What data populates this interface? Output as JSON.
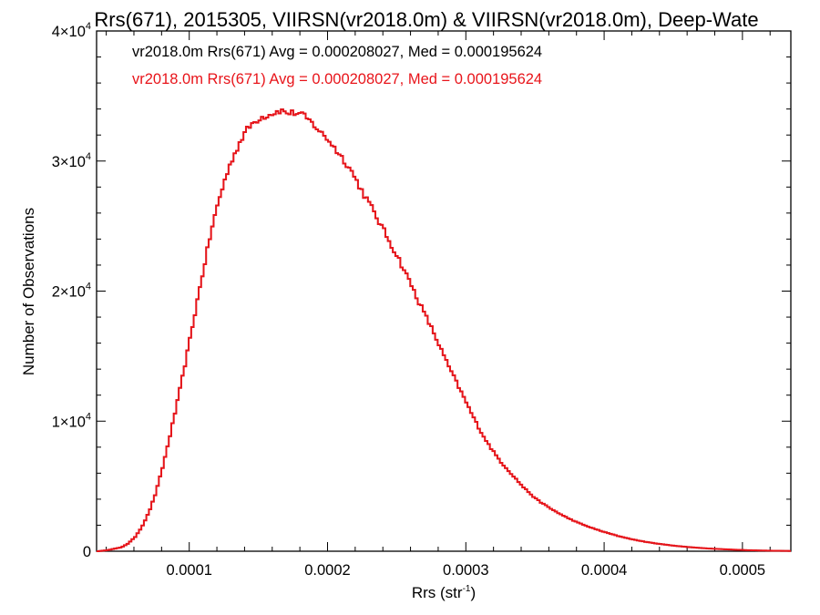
{
  "chart_data": {
    "type": "line",
    "title": "Rrs(671), 2015305, VIIRSN(vr2018.0m) & VIIRSN(vr2018.0m), Deep-Wate",
    "xlabel": "Rrs (str",
    "xlabel_sup": "-1",
    "xlabel_suffix": ")",
    "ylabel": "Number of Observations",
    "xlim": [
      3.3e-05,
      0.000535
    ],
    "ylim": [
      0,
      40000
    ],
    "x_ticks": [
      {
        "value": 0.0001,
        "label": "0.0001"
      },
      {
        "value": 0.0002,
        "label": "0.0002"
      },
      {
        "value": 0.0003,
        "label": "0.0003"
      },
      {
        "value": 0.0004,
        "label": "0.0004"
      },
      {
        "value": 0.0005,
        "label": "0.0005"
      }
    ],
    "y_ticks": [
      {
        "value": 0,
        "mantissa": "0",
        "exp": ""
      },
      {
        "value": 10000,
        "mantissa": "1×10",
        "exp": "4"
      },
      {
        "value": 20000,
        "mantissa": "2×10",
        "exp": "4"
      },
      {
        "value": 30000,
        "mantissa": "3×10",
        "exp": "4"
      },
      {
        "value": 40000,
        "mantissa": "4×10",
        "exp": "4"
      }
    ],
    "grid": false,
    "legend_position": "top-left",
    "series": [
      {
        "name": "vr2018.0m Rrs(671) Avg = 0.000208027, Med = 0.000195624",
        "color": "#000000",
        "points": [
          [
            3.3e-05,
            0
          ],
          [
            4e-05,
            80
          ],
          [
            5e-05,
            300
          ],
          [
            5.5e-05,
            600
          ],
          [
            6e-05,
            1100
          ],
          [
            6.5e-05,
            1900
          ],
          [
            7e-05,
            3000
          ],
          [
            7.5e-05,
            4500
          ],
          [
            8e-05,
            6500
          ],
          [
            8.5e-05,
            8800
          ],
          [
            9e-05,
            11200
          ],
          [
            9.5e-05,
            13800
          ],
          [
            0.0001,
            16500
          ],
          [
            0.000105,
            19300
          ],
          [
            0.00011,
            22000
          ],
          [
            0.000115,
            24600
          ],
          [
            0.00012,
            26800
          ],
          [
            0.000125,
            28600
          ],
          [
            0.00013,
            30100
          ],
          [
            0.000135,
            31300
          ],
          [
            0.00014,
            32300
          ],
          [
            0.000145,
            32900
          ],
          [
            0.00015,
            33300
          ],
          [
            0.000155,
            33500
          ],
          [
            0.00016,
            33700
          ],
          [
            0.000165,
            33900
          ],
          [
            0.00017,
            33700
          ],
          [
            0.000175,
            33700
          ],
          [
            0.00018,
            33600
          ],
          [
            0.000185,
            33200
          ],
          [
            0.00019,
            32700
          ],
          [
            0.000195,
            32100
          ],
          [
            0.0002,
            31600
          ],
          [
            0.000205,
            30900
          ],
          [
            0.00021,
            30200
          ],
          [
            0.000215,
            29500
          ],
          [
            0.00022,
            28500
          ],
          [
            0.000225,
            27500
          ],
          [
            0.00023,
            26600
          ],
          [
            0.000235,
            25600
          ],
          [
            0.00024,
            24600
          ],
          [
            0.000245,
            23600
          ],
          [
            0.00025,
            22600
          ],
          [
            0.000255,
            21500
          ],
          [
            0.00026,
            20400
          ],
          [
            0.000265,
            19200
          ],
          [
            0.00027,
            18100
          ],
          [
            0.000275,
            17000
          ],
          [
            0.00028,
            15800
          ],
          [
            0.000285,
            14600
          ],
          [
            0.00029,
            13500
          ],
          [
            0.000295,
            12400
          ],
          [
            0.0003,
            11300
          ],
          [
            0.000305,
            10200
          ],
          [
            0.00031,
            9200
          ],
          [
            0.000315,
            8300
          ],
          [
            0.00032,
            7500
          ],
          [
            0.000325,
            6800
          ],
          [
            0.00033,
            6200
          ],
          [
            0.000335,
            5600
          ],
          [
            0.00034,
            5000
          ],
          [
            0.000345,
            4500
          ],
          [
            0.00035,
            4000
          ],
          [
            0.00036,
            3300
          ],
          [
            0.00037,
            2700
          ],
          [
            0.00038,
            2200
          ],
          [
            0.00039,
            1800
          ],
          [
            0.0004,
            1450
          ],
          [
            0.00041,
            1150
          ],
          [
            0.00042,
            900
          ],
          [
            0.00043,
            700
          ],
          [
            0.00044,
            550
          ],
          [
            0.00045,
            420
          ],
          [
            0.00046,
            320
          ],
          [
            0.00047,
            240
          ],
          [
            0.00048,
            180
          ],
          [
            0.00049,
            130
          ],
          [
            0.0005,
            90
          ],
          [
            0.00051,
            60
          ],
          [
            0.00052,
            40
          ],
          [
            0.00053,
            25
          ],
          [
            0.000535,
            20
          ]
        ]
      },
      {
        "name": "vr2018.0m Rrs(671) Avg = 0.000208027, Med = 0.000195624",
        "color": "#e8141a",
        "points": [
          [
            3.3e-05,
            0
          ],
          [
            4e-05,
            80
          ],
          [
            5e-05,
            300
          ],
          [
            5.5e-05,
            600
          ],
          [
            6e-05,
            1100
          ],
          [
            6.5e-05,
            1900
          ],
          [
            7e-05,
            3000
          ],
          [
            7.5e-05,
            4500
          ],
          [
            8e-05,
            6500
          ],
          [
            8.5e-05,
            8800
          ],
          [
            9e-05,
            11200
          ],
          [
            9.5e-05,
            13800
          ],
          [
            0.0001,
            16500
          ],
          [
            0.000105,
            19300
          ],
          [
            0.00011,
            22000
          ],
          [
            0.000115,
            24600
          ],
          [
            0.00012,
            26800
          ],
          [
            0.000125,
            28600
          ],
          [
            0.00013,
            30100
          ],
          [
            0.000135,
            31300
          ],
          [
            0.00014,
            32300
          ],
          [
            0.000145,
            32900
          ],
          [
            0.00015,
            33300
          ],
          [
            0.000155,
            33500
          ],
          [
            0.00016,
            33700
          ],
          [
            0.000165,
            33900
          ],
          [
            0.00017,
            33700
          ],
          [
            0.000175,
            33700
          ],
          [
            0.00018,
            33600
          ],
          [
            0.000185,
            33200
          ],
          [
            0.00019,
            32700
          ],
          [
            0.000195,
            32100
          ],
          [
            0.0002,
            31600
          ],
          [
            0.000205,
            30900
          ],
          [
            0.00021,
            30200
          ],
          [
            0.000215,
            29500
          ],
          [
            0.00022,
            28500
          ],
          [
            0.000225,
            27500
          ],
          [
            0.00023,
            26600
          ],
          [
            0.000235,
            25600
          ],
          [
            0.00024,
            24600
          ],
          [
            0.000245,
            23600
          ],
          [
            0.00025,
            22600
          ],
          [
            0.000255,
            21500
          ],
          [
            0.00026,
            20400
          ],
          [
            0.000265,
            19200
          ],
          [
            0.00027,
            18100
          ],
          [
            0.000275,
            17000
          ],
          [
            0.00028,
            15800
          ],
          [
            0.000285,
            14600
          ],
          [
            0.00029,
            13500
          ],
          [
            0.000295,
            12400
          ],
          [
            0.0003,
            11300
          ],
          [
            0.000305,
            10200
          ],
          [
            0.00031,
            9200
          ],
          [
            0.000315,
            8300
          ],
          [
            0.00032,
            7500
          ],
          [
            0.000325,
            6800
          ],
          [
            0.00033,
            6200
          ],
          [
            0.000335,
            5600
          ],
          [
            0.00034,
            5000
          ],
          [
            0.000345,
            4500
          ],
          [
            0.00035,
            4000
          ],
          [
            0.00036,
            3300
          ],
          [
            0.00037,
            2700
          ],
          [
            0.00038,
            2200
          ],
          [
            0.00039,
            1800
          ],
          [
            0.0004,
            1450
          ],
          [
            0.00041,
            1150
          ],
          [
            0.00042,
            900
          ],
          [
            0.00043,
            700
          ],
          [
            0.00044,
            550
          ],
          [
            0.00045,
            420
          ],
          [
            0.00046,
            320
          ],
          [
            0.00047,
            240
          ],
          [
            0.00048,
            180
          ],
          [
            0.00049,
            130
          ],
          [
            0.0005,
            90
          ],
          [
            0.00051,
            60
          ],
          [
            0.00052,
            40
          ],
          [
            0.00053,
            25
          ],
          [
            0.000535,
            20
          ]
        ]
      }
    ]
  }
}
